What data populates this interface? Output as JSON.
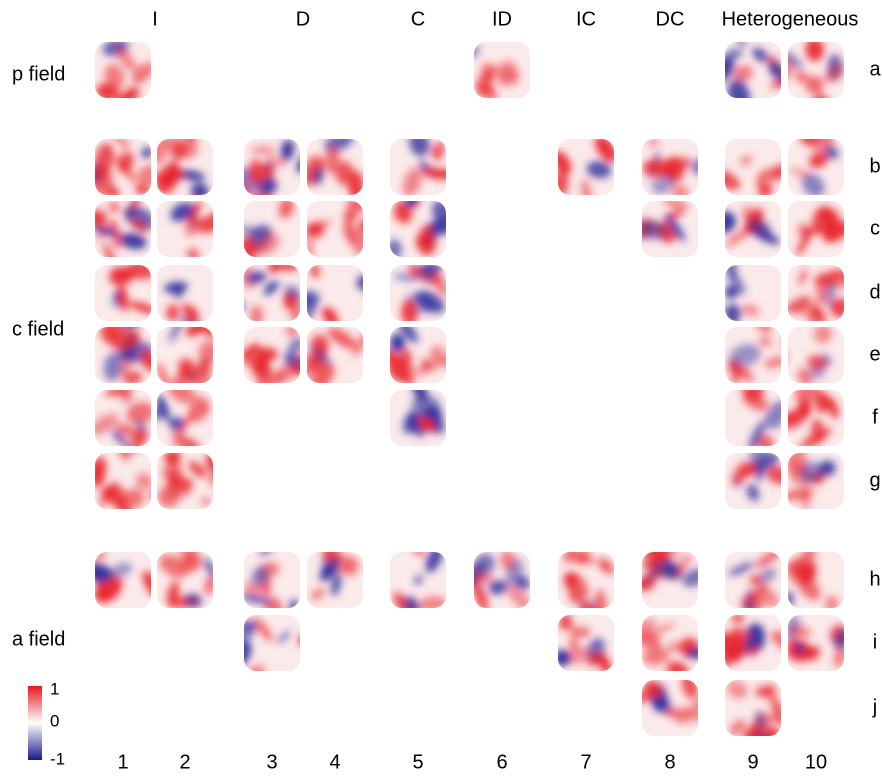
{
  "column_groups": [
    "I",
    "D",
    "C",
    "ID",
    "IC",
    "DC",
    "Heterogeneous"
  ],
  "field_labels": [
    "p field",
    "c field",
    "a field"
  ],
  "row_labels": [
    "a",
    "b",
    "c",
    "d",
    "e",
    "f",
    "g",
    "h",
    "i",
    "j"
  ],
  "column_numbers": [
    "1",
    "2",
    "3",
    "4",
    "5",
    "6",
    "7",
    "8",
    "9",
    "10"
  ],
  "colorbar": {
    "labels": [
      "1",
      "0",
      "-1"
    ]
  }
}
